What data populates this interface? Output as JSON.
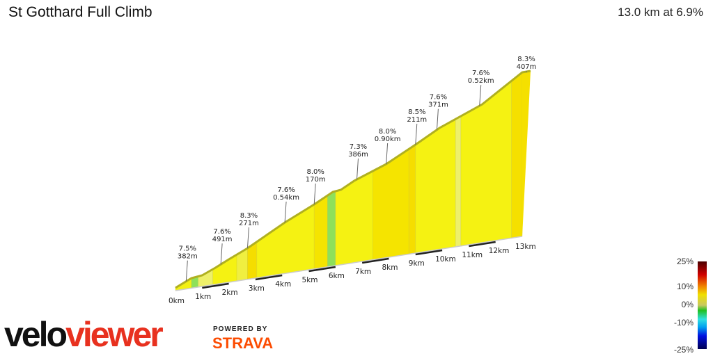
{
  "header": {
    "title": "St Gotthard Full Climb",
    "summary": "13.0 km at 6.9%"
  },
  "chart_data": {
    "type": "area",
    "title": "St Gotthard Full Climb",
    "xlim": [
      0,
      13
    ],
    "x_ticks": [
      "0km",
      "1km",
      "2km",
      "3km",
      "4km",
      "5km",
      "6km",
      "7km",
      "8km",
      "9km",
      "10km",
      "11km",
      "12km",
      "13km"
    ],
    "annotations": [
      {
        "km": 0.4,
        "grade": "7.5%",
        "length": "382m"
      },
      {
        "km": 1.7,
        "grade": "7.6%",
        "length": "491m"
      },
      {
        "km": 2.7,
        "grade": "8.3%",
        "length": "271m"
      },
      {
        "km": 4.1,
        "grade": "7.6%",
        "length": "0.54km"
      },
      {
        "km": 5.2,
        "grade": "8.0%",
        "length": "170m"
      },
      {
        "km": 6.8,
        "grade": "7.3%",
        "length": "386m"
      },
      {
        "km": 7.9,
        "grade": "8.0%",
        "length": "0.90km"
      },
      {
        "km": 9.0,
        "grade": "8.5%",
        "length": "211m"
      },
      {
        "km": 9.8,
        "grade": "7.6%",
        "length": "371m"
      },
      {
        "km": 11.4,
        "grade": "7.6%",
        "length": "0.52km"
      },
      {
        "km": 13.0,
        "grade": "8.3%",
        "length": "407m"
      }
    ],
    "segments": [
      {
        "from": 0,
        "to": 0.6,
        "color": "#f2f013"
      },
      {
        "from": 0.6,
        "to": 0.85,
        "color": "#8ee05a"
      },
      {
        "from": 0.85,
        "to": 1.4,
        "color": "#eef06a"
      },
      {
        "from": 1.4,
        "to": 2.3,
        "color": "#f5f212"
      },
      {
        "from": 2.3,
        "to": 2.7,
        "color": "#f0ef40"
      },
      {
        "from": 2.7,
        "to": 3.05,
        "color": "#f5dd00"
      },
      {
        "from": 3.05,
        "to": 5.2,
        "color": "#f5f212"
      },
      {
        "from": 5.2,
        "to": 5.7,
        "color": "#f5e400"
      },
      {
        "from": 5.7,
        "to": 6.0,
        "color": "#8ee05a"
      },
      {
        "from": 6.0,
        "to": 7.4,
        "color": "#f5f212"
      },
      {
        "from": 7.4,
        "to": 8.75,
        "color": "#f5e400"
      },
      {
        "from": 8.75,
        "to": 9.0,
        "color": "#f5dd00"
      },
      {
        "from": 9.0,
        "to": 10.5,
        "color": "#f5f212"
      },
      {
        "from": 10.5,
        "to": 10.7,
        "color": "#eef06a"
      },
      {
        "from": 10.7,
        "to": 12.6,
        "color": "#f5f212"
      },
      {
        "from": 12.6,
        "to": 13.0,
        "color": "#f5e000"
      }
    ],
    "legend": {
      "labels": [
        "25%",
        "10%",
        "0%",
        "-10%",
        "-25%"
      ],
      "placement": "bottom-right"
    }
  },
  "branding": {
    "logo_a": "velo",
    "logo_b": "viewer",
    "powered": "POWERED BY",
    "strava": "STRAVA"
  }
}
